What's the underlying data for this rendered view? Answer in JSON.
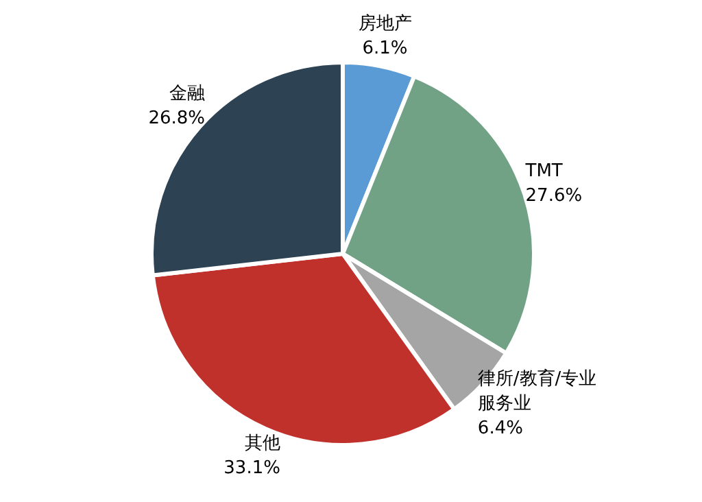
{
  "chart_data": {
    "type": "pie",
    "categories": [
      "房地产",
      "TMT",
      "律所/教育/专业服务业",
      "其他",
      "金融"
    ],
    "values": [
      6.1,
      27.6,
      6.4,
      33.1,
      26.8
    ],
    "colors": [
      "#5b9bd5",
      "#71a285",
      "#a5a5a5",
      "#c1312c",
      "#2d4253"
    ],
    "legend": false,
    "value_labels": [
      "6.1%",
      "27.6%",
      "6.4%",
      "33.1%",
      "26.8%"
    ]
  }
}
